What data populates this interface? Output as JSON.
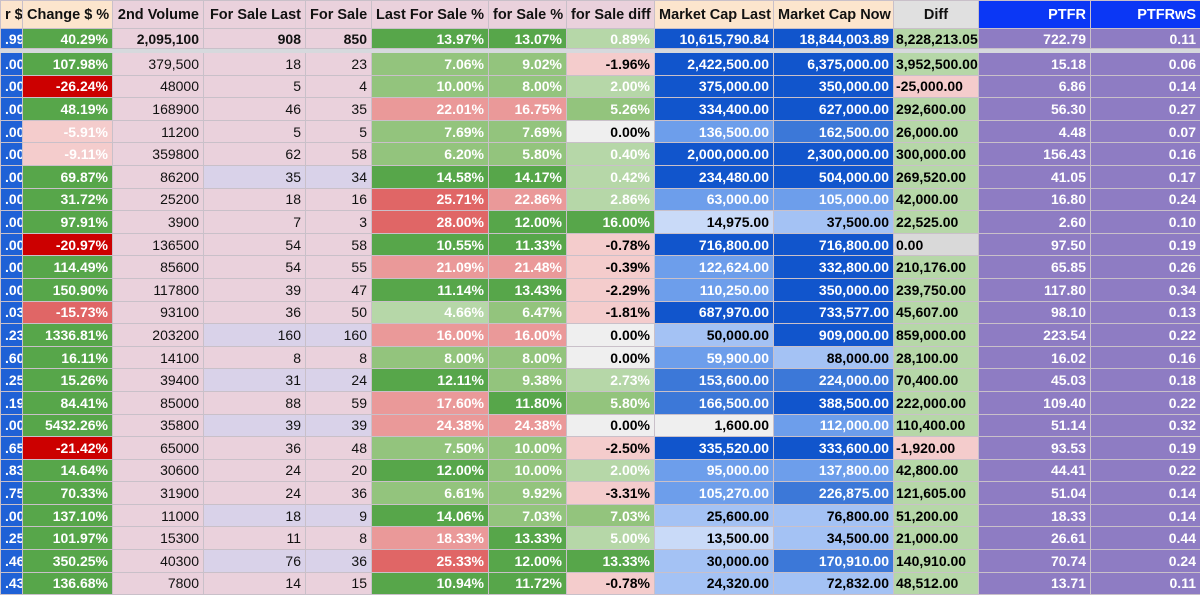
{
  "colors": {
    "green_strong": "#57a64a",
    "green_mid": "#93c47d",
    "green_light": "#b6d7a8",
    "red_strong": "#cc0000",
    "red_mid": "#e06666",
    "red_soft": "#ea9999",
    "pink_light": "#f4cccc",
    "neutral": "#efefef",
    "blue_dark": "#1155cc",
    "blue_mid": "#3c78d8",
    "blue_light": "#6d9eeb",
    "blue_pale": "#a4c2f4",
    "blue_faint": "#c9daf8",
    "diff_green": "#b6d7a8",
    "diff_gray": "#d9d9d9",
    "purple": "#8e7cc3",
    "header_blue": "#0b37f5"
  },
  "headers": [
    "r $",
    "Change $ %",
    "2nd Volume",
    "For Sale Last",
    "For Sale",
    "Last For Sale %",
    "for Sale %",
    "for Sale diff",
    "Market Cap Last",
    "Market Cap Now",
    "Diff",
    "PTFR",
    "PTFRwS"
  ],
  "total": {
    "c0": ".99",
    "change": "40.29%",
    "volume": "2,095,100",
    "fs_last": "908",
    "fs": "850",
    "lfs_pct": "13.97%",
    "fs_pct": "13.07%",
    "fs_diff": "0.89%",
    "mc_last": "10,615,790.84",
    "mc_now": "18,844,003.89",
    "diff": "8,228,213.05",
    "ptfr": "722.79",
    "ptfrws": "0.11"
  },
  "rows": [
    {
      "c0": ".00",
      "change": "107.98%",
      "cc": "green_strong",
      "volume": "379,500",
      "fs_last": "18",
      "fs": "23",
      "lav": false,
      "lfs_pct": "7.06%",
      "lc": "green_mid",
      "fs_pct": "9.02%",
      "fc": "green_mid",
      "fs_diff": "-1.96%",
      "dc": "pink_light",
      "mc_last": "2,422,500.00",
      "mlc": "blue_dark",
      "mc_now": "6,375,000.00",
      "mnc": "blue_dark",
      "diff": "3,952,500.00",
      "xc": "diff_green",
      "ptfr": "15.18",
      "ptfrws": "0.06"
    },
    {
      "c0": ".00",
      "change": "-26.24%",
      "cc": "red_strong",
      "volume": "48000",
      "fs_last": "5",
      "fs": "4",
      "lav": false,
      "lfs_pct": "10.00%",
      "lc": "green_mid",
      "fs_pct": "8.00%",
      "fc": "green_mid",
      "fs_diff": "2.00%",
      "dc": "green_light",
      "mc_last": "375,000.00",
      "mlc": "blue_dark",
      "mc_now": "350,000.00",
      "mnc": "blue_dark",
      "diff": "-25,000.00",
      "xc": "pink_light",
      "ptfr": "6.86",
      "ptfrws": "0.14"
    },
    {
      "c0": ".00",
      "change": "48.19%",
      "cc": "green_strong",
      "volume": "168900",
      "fs_last": "46",
      "fs": "35",
      "lav": false,
      "lfs_pct": "22.01%",
      "lc": "red_soft",
      "fs_pct": "16.75%",
      "fc": "red_soft",
      "fs_diff": "5.26%",
      "dc": "green_mid",
      "mc_last": "334,400.00",
      "mlc": "blue_dark",
      "mc_now": "627,000.00",
      "mnc": "blue_dark",
      "diff": "292,600.00",
      "xc": "diff_green",
      "ptfr": "56.30",
      "ptfrws": "0.27"
    },
    {
      "c0": ".00",
      "change": "-5.91%",
      "cc": "pink_light",
      "volume": "11200",
      "fs_last": "5",
      "fs": "5",
      "lav": false,
      "lfs_pct": "7.69%",
      "lc": "green_mid",
      "fs_pct": "7.69%",
      "fc": "green_mid",
      "fs_diff": "0.00%",
      "dc": "neutral",
      "mc_last": "136,500.00",
      "mlc": "blue_light",
      "mc_now": "162,500.00",
      "mnc": "blue_mid",
      "diff": "26,000.00",
      "xc": "diff_green",
      "ptfr": "4.48",
      "ptfrws": "0.07"
    },
    {
      "c0": ".00",
      "change": "-9.11%",
      "cc": "pink_light",
      "volume": "359800",
      "fs_last": "62",
      "fs": "58",
      "lav": false,
      "lfs_pct": "6.20%",
      "lc": "green_mid",
      "fs_pct": "5.80%",
      "fc": "green_mid",
      "fs_diff": "0.40%",
      "dc": "green_light",
      "mc_last": "2,000,000.00",
      "mlc": "blue_dark",
      "mc_now": "2,300,000.00",
      "mnc": "blue_dark",
      "diff": "300,000.00",
      "xc": "diff_green",
      "ptfr": "156.43",
      "ptfrws": "0.16"
    },
    {
      "c0": ".00",
      "change": "69.87%",
      "cc": "green_strong",
      "volume": "86200",
      "fs_last": "35",
      "fs": "34",
      "lav": true,
      "lfs_pct": "14.58%",
      "lc": "green_strong",
      "fs_pct": "14.17%",
      "fc": "green_strong",
      "fs_diff": "0.42%",
      "dc": "green_light",
      "mc_last": "234,480.00",
      "mlc": "blue_dark",
      "mc_now": "504,000.00",
      "mnc": "blue_dark",
      "diff": "269,520.00",
      "xc": "diff_green",
      "ptfr": "41.05",
      "ptfrws": "0.17"
    },
    {
      "c0": ".00",
      "change": "31.72%",
      "cc": "green_strong",
      "volume": "25200",
      "fs_last": "18",
      "fs": "16",
      "lav": false,
      "lfs_pct": "25.71%",
      "lc": "red_mid",
      "fs_pct": "22.86%",
      "fc": "red_soft",
      "fs_diff": "2.86%",
      "dc": "green_light",
      "mc_last": "63,000.00",
      "mlc": "blue_light",
      "mc_now": "105,000.00",
      "mnc": "blue_light",
      "diff": "42,000.00",
      "xc": "diff_green",
      "ptfr": "16.80",
      "ptfrws": "0.24"
    },
    {
      "c0": ".00",
      "change": "97.91%",
      "cc": "green_strong",
      "volume": "3900",
      "fs_last": "7",
      "fs": "3",
      "lav": false,
      "lfs_pct": "28.00%",
      "lc": "red_mid",
      "fs_pct": "12.00%",
      "fc": "green_strong",
      "fs_diff": "16.00%",
      "dc": "green_strong",
      "mc_last": "14,975.00",
      "mlc": "blue_faint",
      "mc_now": "37,500.00",
      "mnc": "blue_pale",
      "diff": "22,525.00",
      "xc": "diff_green",
      "ptfr": "2.60",
      "ptfrws": "0.10"
    },
    {
      "c0": ".00",
      "change": "-20.97%",
      "cc": "red_strong",
      "volume": "136500",
      "fs_last": "54",
      "fs": "58",
      "lav": false,
      "lfs_pct": "10.55%",
      "lc": "green_strong",
      "fs_pct": "11.33%",
      "fc": "green_strong",
      "fs_diff": "-0.78%",
      "dc": "pink_light",
      "mc_last": "716,800.00",
      "mlc": "blue_dark",
      "mc_now": "716,800.00",
      "mnc": "blue_dark",
      "diff": "0.00",
      "xc": "diff_gray",
      "ptfr": "97.50",
      "ptfrws": "0.19"
    },
    {
      "c0": ".00",
      "change": "114.49%",
      "cc": "green_strong",
      "volume": "85600",
      "fs_last": "54",
      "fs": "55",
      "lav": false,
      "lfs_pct": "21.09%",
      "lc": "red_soft",
      "fs_pct": "21.48%",
      "fc": "red_soft",
      "fs_diff": "-0.39%",
      "dc": "pink_light",
      "mc_last": "122,624.00",
      "mlc": "blue_light",
      "mc_now": "332,800.00",
      "mnc": "blue_dark",
      "diff": "210,176.00",
      "xc": "diff_green",
      "ptfr": "65.85",
      "ptfrws": "0.26"
    },
    {
      "c0": ".00",
      "change": "150.90%",
      "cc": "green_strong",
      "volume": "117800",
      "fs_last": "39",
      "fs": "47",
      "lav": false,
      "lfs_pct": "11.14%",
      "lc": "green_strong",
      "fs_pct": "13.43%",
      "fc": "green_strong",
      "fs_diff": "-2.29%",
      "dc": "pink_light",
      "mc_last": "110,250.00",
      "mlc": "blue_light",
      "mc_now": "350,000.00",
      "mnc": "blue_dark",
      "diff": "239,750.00",
      "xc": "diff_green",
      "ptfr": "117.80",
      "ptfrws": "0.34"
    },
    {
      "c0": ".03",
      "change": "-15.73%",
      "cc": "red_mid",
      "volume": "93100",
      "fs_last": "36",
      "fs": "50",
      "lav": false,
      "lfs_pct": "4.66%",
      "lc": "green_light",
      "fs_pct": "6.47%",
      "fc": "green_mid",
      "fs_diff": "-1.81%",
      "dc": "pink_light",
      "mc_last": "687,970.00",
      "mlc": "blue_dark",
      "mc_now": "733,577.00",
      "mnc": "blue_dark",
      "diff": "45,607.00",
      "xc": "diff_green",
      "ptfr": "98.10",
      "ptfrws": "0.13"
    },
    {
      "c0": ".23",
      "change": "1336.81%",
      "cc": "green_strong",
      "volume": "203200",
      "fs_last": "160",
      "fs": "160",
      "lav": true,
      "lfs_pct": "16.00%",
      "lc": "red_soft",
      "fs_pct": "16.00%",
      "fc": "red_soft",
      "fs_diff": "0.00%",
      "dc": "neutral",
      "mc_last": "50,000.00",
      "mlc": "blue_pale",
      "mc_now": "909,000.00",
      "mnc": "blue_dark",
      "diff": "859,000.00",
      "xc": "diff_green",
      "ptfr": "223.54",
      "ptfrws": "0.22"
    },
    {
      "c0": ".60",
      "change": "16.11%",
      "cc": "green_strong",
      "volume": "14100",
      "fs_last": "8",
      "fs": "8",
      "lav": false,
      "lfs_pct": "8.00%",
      "lc": "green_mid",
      "fs_pct": "8.00%",
      "fc": "green_mid",
      "fs_diff": "0.00%",
      "dc": "neutral",
      "mc_last": "59,900.00",
      "mlc": "blue_light",
      "mc_now": "88,000.00",
      "mnc": "blue_pale",
      "diff": "28,100.00",
      "xc": "diff_green",
      "ptfr": "16.02",
      "ptfrws": "0.16"
    },
    {
      "c0": ".25",
      "change": "15.26%",
      "cc": "green_strong",
      "volume": "39400",
      "fs_last": "31",
      "fs": "24",
      "lav": true,
      "lfs_pct": "12.11%",
      "lc": "green_strong",
      "fs_pct": "9.38%",
      "fc": "green_mid",
      "fs_diff": "2.73%",
      "dc": "green_light",
      "mc_last": "153,600.00",
      "mlc": "blue_mid",
      "mc_now": "224,000.00",
      "mnc": "blue_mid",
      "diff": "70,400.00",
      "xc": "diff_green",
      "ptfr": "45.03",
      "ptfrws": "0.18"
    },
    {
      "c0": ".19",
      "change": "84.41%",
      "cc": "green_strong",
      "volume": "85000",
      "fs_last": "88",
      "fs": "59",
      "lav": false,
      "lfs_pct": "17.60%",
      "lc": "red_soft",
      "fs_pct": "11.80%",
      "fc": "green_strong",
      "fs_diff": "5.80%",
      "dc": "green_mid",
      "mc_last": "166,500.00",
      "mlc": "blue_mid",
      "mc_now": "388,500.00",
      "mnc": "blue_dark",
      "diff": "222,000.00",
      "xc": "diff_green",
      "ptfr": "109.40",
      "ptfrws": "0.22"
    },
    {
      "c0": ".00",
      "change": "5432.26%",
      "cc": "green_strong",
      "volume": "35800",
      "fs_last": "39",
      "fs": "39",
      "lav": true,
      "lfs_pct": "24.38%",
      "lc": "red_soft",
      "fs_pct": "24.38%",
      "fc": "red_soft",
      "fs_diff": "0.00%",
      "dc": "neutral",
      "mc_last": "1,600.00",
      "mlc": "neutral",
      "mc_now": "112,000.00",
      "mnc": "blue_light",
      "diff": "110,400.00",
      "xc": "diff_green",
      "ptfr": "51.14",
      "ptfrws": "0.32"
    },
    {
      "c0": ".65",
      "change": "-21.42%",
      "cc": "red_strong",
      "volume": "65000",
      "fs_last": "36",
      "fs": "48",
      "lav": false,
      "lfs_pct": "7.50%",
      "lc": "green_mid",
      "fs_pct": "10.00%",
      "fc": "green_mid",
      "fs_diff": "-2.50%",
      "dc": "pink_light",
      "mc_last": "335,520.00",
      "mlc": "blue_dark",
      "mc_now": "333,600.00",
      "mnc": "blue_dark",
      "diff": "-1,920.00",
      "xc": "pink_light",
      "ptfr": "93.53",
      "ptfrws": "0.19"
    },
    {
      "c0": ".83",
      "change": "14.64%",
      "cc": "green_strong",
      "volume": "30600",
      "fs_last": "24",
      "fs": "20",
      "lav": false,
      "lfs_pct": "12.00%",
      "lc": "green_strong",
      "fs_pct": "10.00%",
      "fc": "green_mid",
      "fs_diff": "2.00%",
      "dc": "green_light",
      "mc_last": "95,000.00",
      "mlc": "blue_light",
      "mc_now": "137,800.00",
      "mnc": "blue_light",
      "diff": "42,800.00",
      "xc": "diff_green",
      "ptfr": "44.41",
      "ptfrws": "0.22"
    },
    {
      "c0": ".75",
      "change": "70.33%",
      "cc": "green_strong",
      "volume": "31900",
      "fs_last": "24",
      "fs": "36",
      "lav": false,
      "lfs_pct": "6.61%",
      "lc": "green_mid",
      "fs_pct": "9.92%",
      "fc": "green_mid",
      "fs_diff": "-3.31%",
      "dc": "pink_light",
      "mc_last": "105,270.00",
      "mlc": "blue_light",
      "mc_now": "226,875.00",
      "mnc": "blue_mid",
      "diff": "121,605.00",
      "xc": "diff_green",
      "ptfr": "51.04",
      "ptfrws": "0.14"
    },
    {
      "c0": ".00",
      "change": "137.10%",
      "cc": "green_strong",
      "volume": "11000",
      "fs_last": "18",
      "fs": "9",
      "lav": true,
      "lfs_pct": "14.06%",
      "lc": "green_strong",
      "fs_pct": "7.03%",
      "fc": "green_mid",
      "fs_diff": "7.03%",
      "dc": "green_mid",
      "mc_last": "25,600.00",
      "mlc": "blue_pale",
      "mc_now": "76,800.00",
      "mnc": "blue_pale",
      "diff": "51,200.00",
      "xc": "diff_green",
      "ptfr": "18.33",
      "ptfrws": "0.14"
    },
    {
      "c0": ".25",
      "change": "101.97%",
      "cc": "green_strong",
      "volume": "15300",
      "fs_last": "11",
      "fs": "8",
      "lav": false,
      "lfs_pct": "18.33%",
      "lc": "red_soft",
      "fs_pct": "13.33%",
      "fc": "green_strong",
      "fs_diff": "5.00%",
      "dc": "green_light",
      "mc_last": "13,500.00",
      "mlc": "blue_faint",
      "mc_now": "34,500.00",
      "mnc": "blue_pale",
      "diff": "21,000.00",
      "xc": "diff_green",
      "ptfr": "26.61",
      "ptfrws": "0.44"
    },
    {
      "c0": ".46",
      "change": "350.25%",
      "cc": "green_strong",
      "volume": "40300",
      "fs_last": "76",
      "fs": "36",
      "lav": true,
      "lfs_pct": "25.33%",
      "lc": "red_mid",
      "fs_pct": "12.00%",
      "fc": "green_strong",
      "fs_diff": "13.33%",
      "dc": "green_strong",
      "mc_last": "30,000.00",
      "mlc": "blue_pale",
      "mc_now": "170,910.00",
      "mnc": "blue_mid",
      "diff": "140,910.00",
      "xc": "diff_green",
      "ptfr": "70.74",
      "ptfrws": "0.24"
    },
    {
      "c0": ".43",
      "change": "136.68%",
      "cc": "green_strong",
      "volume": "7800",
      "fs_last": "14",
      "fs": "15",
      "lav": false,
      "lfs_pct": "10.94%",
      "lc": "green_strong",
      "fs_pct": "11.72%",
      "fc": "green_strong",
      "fs_diff": "-0.78%",
      "dc": "pink_light",
      "mc_last": "24,320.00",
      "mlc": "blue_pale",
      "mc_now": "72,832.00",
      "mnc": "blue_pale",
      "diff": "48,512.00",
      "xc": "diff_green",
      "ptfr": "13.71",
      "ptfrws": "0.11"
    }
  ]
}
